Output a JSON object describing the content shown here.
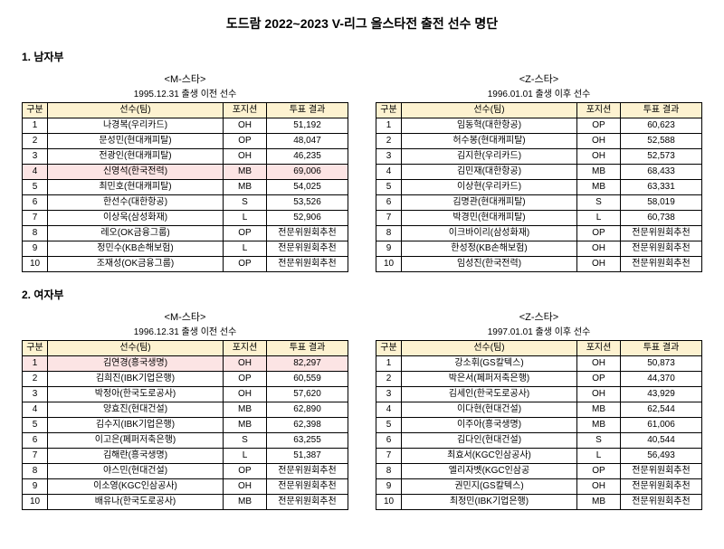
{
  "title": "도드람 2022~2023 V-리그 올스타전 출전 선수 명단",
  "sections": [
    {
      "label": "1. 남자부",
      "tables": [
        {
          "team_title": "<M-스타>",
          "team_sub": "1995.12.31 출생 이전 선수",
          "headers": [
            "구분",
            "선수(팀)",
            "포지션",
            "투표 결과"
          ],
          "rows": [
            {
              "n": "1",
              "p": "나경복(우리카드)",
              "pos": "OH",
              "v": "51,192",
              "hl": false
            },
            {
              "n": "2",
              "p": "문성민(현대캐피탈)",
              "pos": "OP",
              "v": "48,047",
              "hl": false
            },
            {
              "n": "3",
              "p": "전광인(현대캐피탈)",
              "pos": "OH",
              "v": "46,235",
              "hl": false
            },
            {
              "n": "4",
              "p": "신영석(한국전력)",
              "pos": "MB",
              "v": "69,006",
              "hl": true
            },
            {
              "n": "5",
              "p": "최민호(현대캐피탈)",
              "pos": "MB",
              "v": "54,025",
              "hl": false
            },
            {
              "n": "6",
              "p": "한선수(대한항공)",
              "pos": "S",
              "v": "53,526",
              "hl": false
            },
            {
              "n": "7",
              "p": "이상욱(삼성화재)",
              "pos": "L",
              "v": "52,906",
              "hl": false
            },
            {
              "n": "8",
              "p": "레오(OK금융그룹)",
              "pos": "OP",
              "v": "전문위원회추천",
              "hl": false
            },
            {
              "n": "9",
              "p": "정민수(KB손해보험)",
              "pos": "L",
              "v": "전문위원회추천",
              "hl": false
            },
            {
              "n": "10",
              "p": "조재성(OK금융그룹)",
              "pos": "OP",
              "v": "전문위원회추천",
              "hl": false
            }
          ]
        },
        {
          "team_title": "<Z-스타>",
          "team_sub": "1996.01.01 출생 이후 선수",
          "headers": [
            "구분",
            "선수(팀)",
            "포지션",
            "투표 결과"
          ],
          "rows": [
            {
              "n": "1",
              "p": "임동혁(대한항공)",
              "pos": "OP",
              "v": "60,623",
              "hl": false
            },
            {
              "n": "2",
              "p": "허수봉(현대캐피탈)",
              "pos": "OH",
              "v": "52,588",
              "hl": false
            },
            {
              "n": "3",
              "p": "김지한(우리카드)",
              "pos": "OH",
              "v": "52,573",
              "hl": false
            },
            {
              "n": "4",
              "p": "김민재(대한항공)",
              "pos": "MB",
              "v": "68,433",
              "hl": false
            },
            {
              "n": "5",
              "p": "이상현(우리카드)",
              "pos": "MB",
              "v": "63,331",
              "hl": false
            },
            {
              "n": "6",
              "p": "김명관(현대캐피탈)",
              "pos": "S",
              "v": "58,019",
              "hl": false
            },
            {
              "n": "7",
              "p": "박경민(현대캐피탈)",
              "pos": "L",
              "v": "60,738",
              "hl": false
            },
            {
              "n": "8",
              "p": "이크바이리(삼성화재)",
              "pos": "OP",
              "v": "전문위원회추천",
              "hl": false
            },
            {
              "n": "9",
              "p": "한성정(KB손해보험)",
              "pos": "OH",
              "v": "전문위원회추천",
              "hl": false
            },
            {
              "n": "10",
              "p": "임성진(한국전력)",
              "pos": "OH",
              "v": "전문위원회추천",
              "hl": false
            }
          ]
        }
      ]
    },
    {
      "label": "2. 여자부",
      "tables": [
        {
          "team_title": "<M-스타>",
          "team_sub": "1996.12.31 출생 이전 선수",
          "headers": [
            "구분",
            "선수(팀)",
            "포지션",
            "투표 결과"
          ],
          "rows": [
            {
              "n": "1",
              "p": "김연경(흥국생명)",
              "pos": "OH",
              "v": "82,297",
              "hl": true
            },
            {
              "n": "2",
              "p": "김희진(IBK기업은행)",
              "pos": "OP",
              "v": "60,559",
              "hl": false
            },
            {
              "n": "3",
              "p": "박정아(한국도로공사)",
              "pos": "OH",
              "v": "57,620",
              "hl": false
            },
            {
              "n": "4",
              "p": "양효진(현대건설)",
              "pos": "MB",
              "v": "62,890",
              "hl": false
            },
            {
              "n": "5",
              "p": "김수지(IBK기업은행)",
              "pos": "MB",
              "v": "62,398",
              "hl": false
            },
            {
              "n": "6",
              "p": "이고은(페퍼저축은행)",
              "pos": "S",
              "v": "63,255",
              "hl": false
            },
            {
              "n": "7",
              "p": "김해란(흥국생명)",
              "pos": "L",
              "v": "51,387",
              "hl": false
            },
            {
              "n": "8",
              "p": "야스민(현대건설)",
              "pos": "OP",
              "v": "전문위원회추천",
              "hl": false
            },
            {
              "n": "9",
              "p": "이소영(KGC인삼공사)",
              "pos": "OH",
              "v": "전문위원회추천",
              "hl": false
            },
            {
              "n": "10",
              "p": "배유나(한국도로공사)",
              "pos": "MB",
              "v": "전문위원회추천",
              "hl": false
            }
          ]
        },
        {
          "team_title": "<Z-스타>",
          "team_sub": "1997.01.01 출생 이후 선수",
          "headers": [
            "구분",
            "선수(팀)",
            "포지션",
            "투표 결과"
          ],
          "rows": [
            {
              "n": "1",
              "p": "강소휘(GS칼텍스)",
              "pos": "OH",
              "v": "50,873",
              "hl": false
            },
            {
              "n": "2",
              "p": "박은서(페퍼저축은행)",
              "pos": "OP",
              "v": "44,370",
              "hl": false
            },
            {
              "n": "3",
              "p": "김세인(한국도로공사)",
              "pos": "OH",
              "v": "43,929",
              "hl": false
            },
            {
              "n": "4",
              "p": "이다현(현대건설)",
              "pos": "MB",
              "v": "62,544",
              "hl": false
            },
            {
              "n": "5",
              "p": "이주아(흥국생명)",
              "pos": "MB",
              "v": "61,006",
              "hl": false
            },
            {
              "n": "6",
              "p": "김다인(현대건설)",
              "pos": "S",
              "v": "40,544",
              "hl": false
            },
            {
              "n": "7",
              "p": "최효서(KGC인삼공사)",
              "pos": "L",
              "v": "56,493",
              "hl": false
            },
            {
              "n": "8",
              "p": "엘리자벳(KGC인삼공",
              "pos": "OP",
              "v": "전문위원회추천",
              "hl": false
            },
            {
              "n": "9",
              "p": "권민지(GS칼텍스)",
              "pos": "OH",
              "v": "전문위원회추천",
              "hl": false
            },
            {
              "n": "10",
              "p": "최정민(IBK기업은행)",
              "pos": "MB",
              "v": "전문위원회추천",
              "hl": false
            }
          ]
        }
      ]
    }
  ]
}
